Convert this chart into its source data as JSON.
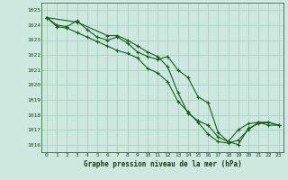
{
  "title": "Graphe pression niveau de la mer (hPa)",
  "bg_color": "#cce8df",
  "grid_color": "#aecfc6",
  "line_color": "#1a5c1a",
  "xlim": [
    -0.5,
    23.5
  ],
  "ylim": [
    1015.5,
    1025.5
  ],
  "yticks": [
    1016,
    1017,
    1018,
    1019,
    1020,
    1021,
    1022,
    1023,
    1024,
    1025
  ],
  "xticks": [
    0,
    1,
    2,
    3,
    4,
    5,
    6,
    7,
    8,
    9,
    10,
    11,
    12,
    13,
    14,
    15,
    16,
    17,
    18,
    19,
    20,
    21,
    22,
    23
  ],
  "series1_x": [
    0,
    1,
    2,
    3,
    4,
    5,
    6,
    7,
    8,
    9,
    10,
    11,
    12,
    13,
    14,
    15,
    16,
    17,
    18,
    19,
    20,
    21,
    22,
    23
  ],
  "series1_y": [
    1024.5,
    1024.0,
    1023.9,
    1024.3,
    1023.7,
    1023.2,
    1023.0,
    1023.2,
    1022.8,
    1022.2,
    1021.9,
    1021.7,
    1021.9,
    1021.0,
    1020.5,
    1019.2,
    1018.8,
    1016.8,
    1016.2,
    1017.0,
    1017.4,
    1017.5,
    1017.3,
    1017.3
  ],
  "series2_x": [
    0,
    1,
    2,
    3,
    4,
    5,
    6,
    7,
    8,
    9,
    10,
    11,
    12,
    13,
    14,
    15,
    16,
    17,
    18,
    19,
    20,
    21,
    22,
    23
  ],
  "series2_y": [
    1024.5,
    1023.9,
    1023.8,
    1023.5,
    1023.2,
    1022.9,
    1022.6,
    1022.3,
    1022.1,
    1021.8,
    1021.1,
    1020.8,
    1020.2,
    1018.9,
    1018.2,
    1017.5,
    1016.7,
    1016.2,
    1016.1,
    1016.3,
    1017.0,
    1017.5,
    1017.5,
    1017.3
  ],
  "series3_x": [
    0,
    3,
    6,
    7,
    8,
    9,
    10,
    11,
    12,
    13,
    14,
    15,
    16,
    17,
    18,
    19,
    20,
    21,
    22,
    23
  ],
  "series3_y": [
    1024.5,
    1024.2,
    1023.3,
    1023.3,
    1023.0,
    1022.6,
    1022.2,
    1021.9,
    1021.2,
    1019.5,
    1018.1,
    1017.6,
    1017.3,
    1016.5,
    1016.2,
    1016.0,
    1017.1,
    1017.4,
    1017.5,
    1017.3
  ]
}
